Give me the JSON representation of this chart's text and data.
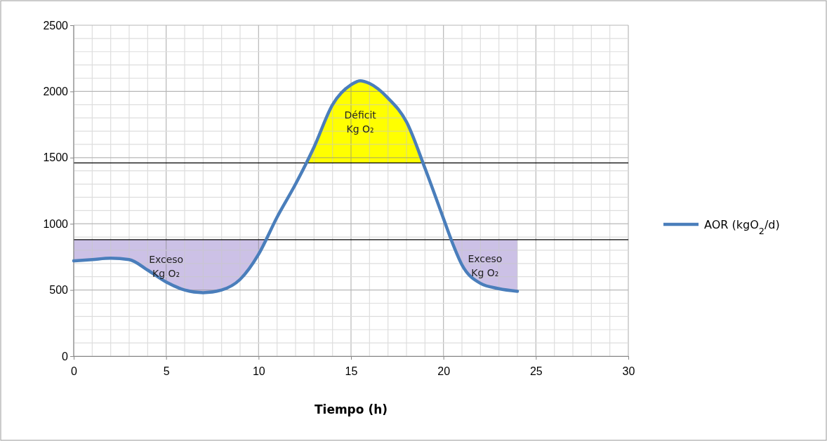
{
  "chart_data": {
    "type": "line",
    "xlabel": "Tiempo (h)",
    "x": [
      0,
      1,
      2,
      3,
      4,
      5,
      6,
      7,
      8,
      9,
      10,
      11,
      12,
      13,
      14,
      15,
      15.5,
      16,
      17,
      18,
      19,
      20,
      20.5,
      21,
      22,
      23,
      24
    ],
    "series": [
      {
        "name": "AOR (kgO$_{2}$/d)",
        "color": "#4a7ebb",
        "values": [
          720,
          730,
          740,
          730,
          650,
          560,
          500,
          480,
          500,
          580,
          770,
          1050,
          1300,
          1580,
          1900,
          2050,
          2080,
          2060,
          1950,
          1770,
          1420,
          1040,
          850,
          690,
          550,
          510,
          490
        ]
      }
    ],
    "xlim": [
      0,
      30
    ],
    "xticks": [
      0,
      5,
      10,
      15,
      20,
      25,
      30
    ],
    "ylim": [
      0,
      2500
    ],
    "yticks": [
      0,
      500,
      1000,
      1500,
      2000,
      2500
    ],
    "ref_lines": [
      {
        "axis": "y",
        "value": 880,
        "color": "#000000"
      },
      {
        "axis": "y",
        "value": 1460,
        "color": "#000000"
      }
    ],
    "bands": [
      {
        "axis": "y",
        "from": 0,
        "to": 880,
        "color": "#ccc1e6"
      },
      {
        "axis": "y",
        "from": 1460,
        "to": 2500,
        "color": "#ffff00"
      }
    ],
    "annotations": [
      "Exceso\nKg O₂",
      "Déficit\nKg O₂",
      "Exceso\nKg O₂"
    ],
    "grid": true,
    "legend": "right",
    "line_style": "solid",
    "marker": "none"
  }
}
